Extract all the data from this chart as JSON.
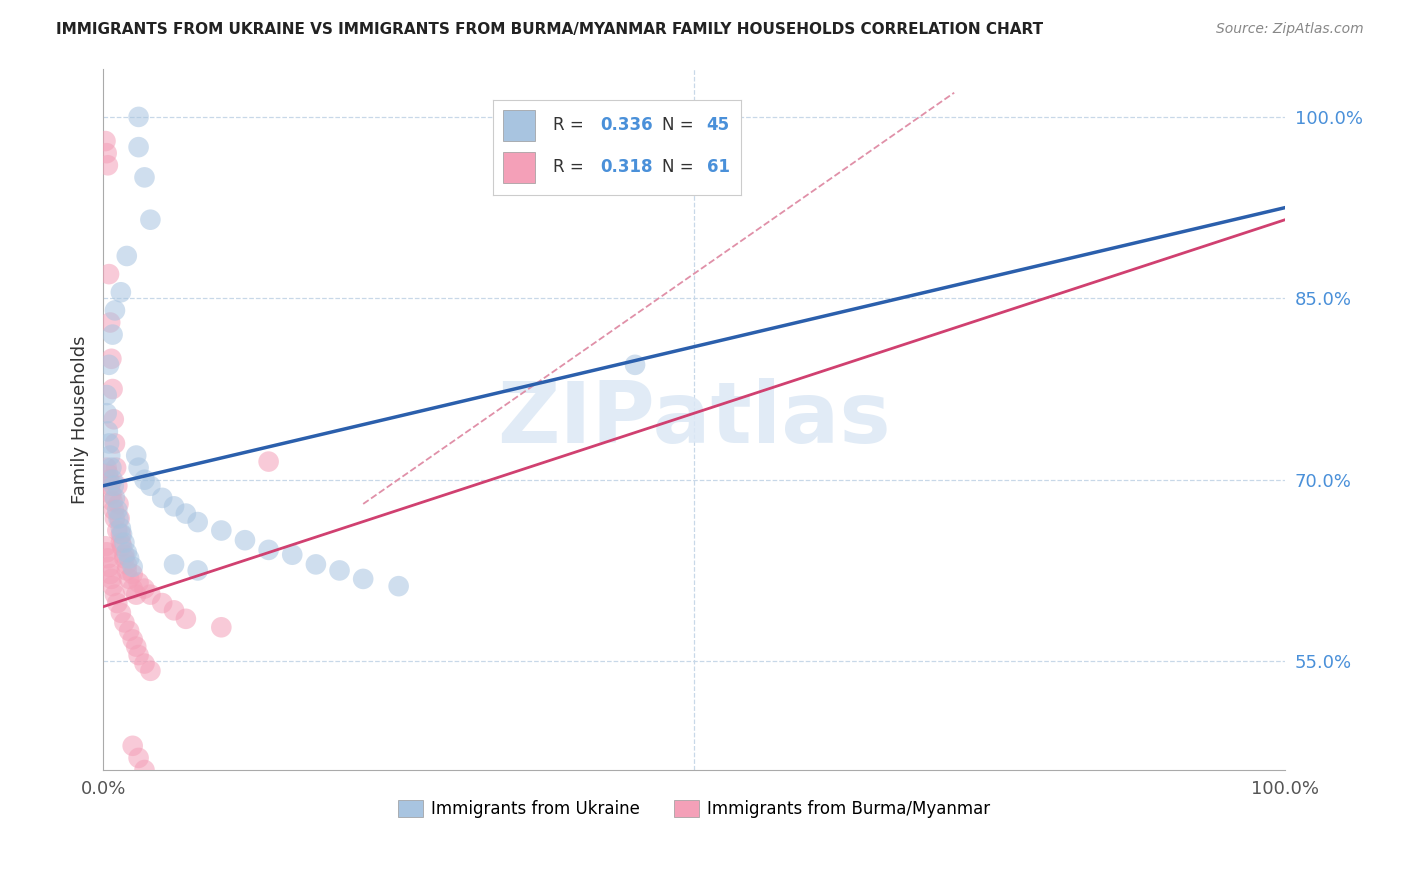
{
  "title": "IMMIGRANTS FROM UKRAINE VS IMMIGRANTS FROM BURMA/MYANMAR FAMILY HOUSEHOLDS CORRELATION CHART",
  "source": "Source: ZipAtlas.com",
  "ylabel": "Family Households",
  "ukraine_R": 0.336,
  "ukraine_N": 45,
  "burma_R": 0.318,
  "burma_N": 61,
  "ukraine_color": "#a8c4e0",
  "burma_color": "#f4a0b8",
  "ukraine_line_color": "#2b5fac",
  "burma_line_color": "#d04070",
  "dashed_line_color": "#e090a8",
  "grid_color": "#c8d8e8",
  "ytick_color": "#4a90d9",
  "xlim": [
    0.0,
    1.0
  ],
  "ylim": [
    0.46,
    1.04
  ],
  "yticks": [
    0.55,
    0.7,
    0.85,
    1.0
  ],
  "ytick_labels": [
    "55.0%",
    "70.0%",
    "85.0%",
    "100.0%"
  ],
  "ukraine_line_x0": 0.0,
  "ukraine_line_y0": 0.695,
  "ukraine_line_x1": 1.0,
  "ukraine_line_y1": 0.925,
  "burma_line_x0": 0.0,
  "burma_line_y0": 0.595,
  "burma_line_x1": 1.0,
  "burma_line_y1": 0.915,
  "dashed_line_x0": 0.22,
  "dashed_line_y0": 0.68,
  "dashed_line_x1": 0.72,
  "dashed_line_y1": 1.02,
  "ukraine_scatter_x": [
    0.03,
    0.03,
    0.035,
    0.04,
    0.02,
    0.015,
    0.01,
    0.008,
    0.005,
    0.003,
    0.003,
    0.004,
    0.005,
    0.006,
    0.007,
    0.008,
    0.009,
    0.01,
    0.012,
    0.013,
    0.015,
    0.016,
    0.018,
    0.02,
    0.022,
    0.025,
    0.028,
    0.03,
    0.035,
    0.04,
    0.05,
    0.06,
    0.07,
    0.08,
    0.1,
    0.12,
    0.14,
    0.16,
    0.18,
    0.2,
    0.22,
    0.25,
    0.45,
    0.06,
    0.08
  ],
  "ukraine_scatter_y": [
    1.0,
    0.975,
    0.95,
    0.915,
    0.885,
    0.855,
    0.84,
    0.82,
    0.795,
    0.77,
    0.755,
    0.74,
    0.73,
    0.72,
    0.71,
    0.7,
    0.695,
    0.685,
    0.675,
    0.668,
    0.66,
    0.655,
    0.648,
    0.64,
    0.635,
    0.628,
    0.72,
    0.71,
    0.7,
    0.695,
    0.685,
    0.678,
    0.672,
    0.665,
    0.658,
    0.65,
    0.642,
    0.638,
    0.63,
    0.625,
    0.618,
    0.612,
    0.795,
    0.63,
    0.625
  ],
  "burma_scatter_x": [
    0.002,
    0.003,
    0.004,
    0.005,
    0.006,
    0.007,
    0.008,
    0.009,
    0.01,
    0.011,
    0.012,
    0.013,
    0.014,
    0.015,
    0.016,
    0.018,
    0.02,
    0.022,
    0.025,
    0.028,
    0.003,
    0.004,
    0.005,
    0.006,
    0.007,
    0.008,
    0.009,
    0.01,
    0.012,
    0.015,
    0.018,
    0.02,
    0.025,
    0.03,
    0.035,
    0.04,
    0.05,
    0.06,
    0.07,
    0.1,
    0.002,
    0.003,
    0.004,
    0.005,
    0.006,
    0.007,
    0.008,
    0.01,
    0.012,
    0.015,
    0.018,
    0.022,
    0.025,
    0.028,
    0.03,
    0.035,
    0.04,
    0.14,
    0.025,
    0.03,
    0.035
  ],
  "burma_scatter_y": [
    0.98,
    0.97,
    0.96,
    0.87,
    0.83,
    0.8,
    0.775,
    0.75,
    0.73,
    0.71,
    0.695,
    0.68,
    0.668,
    0.655,
    0.645,
    0.635,
    0.625,
    0.618,
    0.61,
    0.605,
    0.71,
    0.705,
    0.7,
    0.695,
    0.688,
    0.682,
    0.675,
    0.668,
    0.658,
    0.648,
    0.638,
    0.63,
    0.622,
    0.615,
    0.61,
    0.605,
    0.598,
    0.592,
    0.585,
    0.578,
    0.645,
    0.64,
    0.635,
    0.628,
    0.622,
    0.618,
    0.612,
    0.605,
    0.598,
    0.59,
    0.582,
    0.575,
    0.568,
    0.562,
    0.555,
    0.548,
    0.542,
    0.715,
    0.48,
    0.47,
    0.46
  ]
}
